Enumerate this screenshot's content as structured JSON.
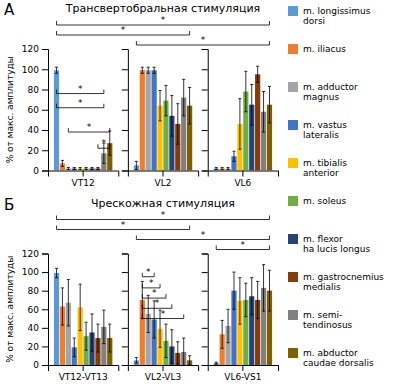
{
  "chart_data": [
    {
      "type": "bar",
      "title": "Трансвертобральная стимуляция",
      "ylabel": "% от макс. амплитуды",
      "categories": [
        "VT12",
        "VL2",
        "VL6"
      ],
      "series": [
        {
          "name": "m. longissimus\ndorsi",
          "color": "#5B9BD5",
          "values": [
            99,
            5,
            2
          ],
          "errors": [
            3,
            4,
            1
          ]
        },
        {
          "name": "m. iliacus",
          "color": "#ED7D31",
          "values": [
            7,
            99,
            2
          ],
          "errors": [
            3,
            3,
            1
          ]
        },
        {
          "name": "m. adductor\nmagnus",
          "color": "#A5A5A5",
          "values": [
            2,
            99,
            2
          ],
          "errors": [
            1,
            3,
            1
          ]
        },
        {
          "name": "m. vastus\nlateralis",
          "color": "#4472C4",
          "values": [
            2,
            99,
            14
          ],
          "errors": [
            1,
            3,
            5
          ]
        },
        {
          "name": "m. tibialis\nanterior",
          "color": "#FFC000",
          "values": [
            2,
            64,
            46
          ],
          "errors": [
            1,
            15,
            25
          ]
        },
        {
          "name": "m. soleus",
          "color": "#70AD47",
          "values": [
            2,
            69,
            78
          ],
          "errors": [
            1,
            15,
            20
          ]
        },
        {
          "name": "m. flexor\nha lucis longus",
          "color": "#264478",
          "values": [
            2,
            54,
            65
          ],
          "errors": [
            1,
            20,
            20
          ]
        },
        {
          "name": "m. gastrocnemius\nmedialis",
          "color": "#843C0C",
          "values": [
            2,
            46,
            95
          ],
          "errors": [
            1,
            20,
            8
          ]
        },
        {
          "name": "m. semi-\ntendinosus",
          "color": "#808080",
          "values": [
            17,
            72,
            58
          ],
          "errors": [
            10,
            18,
            20
          ]
        },
        {
          "name": "m. abductor\ncaudae dorsalis",
          "color": "#7F6000",
          "values": [
            27,
            64,
            65
          ],
          "errors": [
            12,
            18,
            18
          ]
        }
      ],
      "ylim": [
        0,
        120
      ],
      "yticks": [
        0,
        20,
        40,
        60,
        80,
        100,
        120
      ],
      "legend": "right",
      "annotations": [
        {
          "text": "А"
        },
        {
          "text": "*",
          "from": [
            0,
            0
          ],
          "to": [
            2,
            9
          ]
        },
        {
          "text": "*",
          "from": [
            0,
            0
          ],
          "to": [
            1,
            9
          ]
        },
        {
          "text": "*",
          "from": [
            1,
            0
          ],
          "to": [
            2,
            9
          ]
        },
        {
          "text": "*",
          "from": [
            0,
            0
          ],
          "to": [
            0,
            8
          ],
          "y": 76
        },
        {
          "text": "*",
          "from": [
            0,
            0
          ],
          "to": [
            0,
            8
          ],
          "y": 62
        },
        {
          "text": "*",
          "from": [
            0,
            2
          ],
          "to": [
            0,
            9
          ],
          "y": 38
        },
        {
          "text": "*",
          "from": [
            0,
            7
          ],
          "to": [
            0,
            9
          ],
          "y": 22
        }
      ]
    },
    {
      "type": "bar",
      "title": "Чрескожная стимуляция",
      "ylabel": "% от макс. амплитуды",
      "categories": [
        "VT12-VT13",
        "VL2-VL3",
        "VL6-VS1"
      ],
      "series": [
        {
          "color": "#5B9BD5",
          "values": [
            99,
            5,
            2
          ],
          "errors": [
            5,
            3,
            1
          ]
        },
        {
          "color": "#ED7D31",
          "values": [
            63,
            70,
            33
          ],
          "errors": [
            20,
            20,
            15
          ]
        },
        {
          "color": "#A5A5A5",
          "values": [
            67,
            55,
            42
          ],
          "errors": [
            25,
            20,
            18
          ]
        },
        {
          "color": "#4472C4",
          "values": [
            19,
            49,
            80
          ],
          "errors": [
            10,
            20,
            20
          ]
        },
        {
          "color": "#FFC000",
          "values": [
            62,
            39,
            69
          ],
          "errors": [
            25,
            20,
            25
          ]
        },
        {
          "color": "#70AD47",
          "values": [
            31,
            26,
            70
          ],
          "errors": [
            15,
            18,
            18
          ]
        },
        {
          "color": "#264478",
          "values": [
            35,
            20,
            74
          ],
          "errors": [
            20,
            18,
            20
          ]
        },
        {
          "color": "#843C0C",
          "values": [
            29,
            13,
            70
          ],
          "errors": [
            15,
            12,
            20
          ]
        },
        {
          "color": "#808080",
          "values": [
            41,
            14,
            83
          ],
          "errors": [
            18,
            15,
            25
          ]
        },
        {
          "color": "#7F6000",
          "values": [
            29,
            5,
            80
          ],
          "errors": [
            15,
            5,
            22
          ]
        }
      ],
      "ylim": [
        0,
        120
      ],
      "yticks": [
        0,
        20,
        40,
        60,
        80,
        100,
        120
      ],
      "annotations": [
        {
          "text": "Б"
        },
        {
          "text": "*",
          "from": [
            0,
            0
          ],
          "to": [
            2,
            9
          ]
        },
        {
          "text": "*",
          "from": [
            0,
            0
          ],
          "to": [
            1,
            9
          ]
        },
        {
          "text": "*",
          "from": [
            1,
            1
          ],
          "to": [
            1,
            3
          ],
          "y": 95
        },
        {
          "text": "*",
          "from": [
            1,
            1
          ],
          "to": [
            1,
            4
          ],
          "y": 83
        },
        {
          "text": "*",
          "from": [
            1,
            1
          ],
          "to": [
            1,
            5
          ],
          "y": 72
        },
        {
          "text": "*",
          "from": [
            1,
            1
          ],
          "to": [
            1,
            6
          ],
          "y": 61
        },
        {
          "text": "*",
          "from": [
            1,
            1
          ],
          "to": [
            1,
            8
          ],
          "y": 50
        },
        {
          "text": "*",
          "from": [
            1,
            0
          ],
          "to": [
            2,
            9
          ]
        },
        {
          "text": "*",
          "from": [
            2,
            0
          ],
          "to": [
            2,
            9
          ]
        }
      ]
    }
  ]
}
